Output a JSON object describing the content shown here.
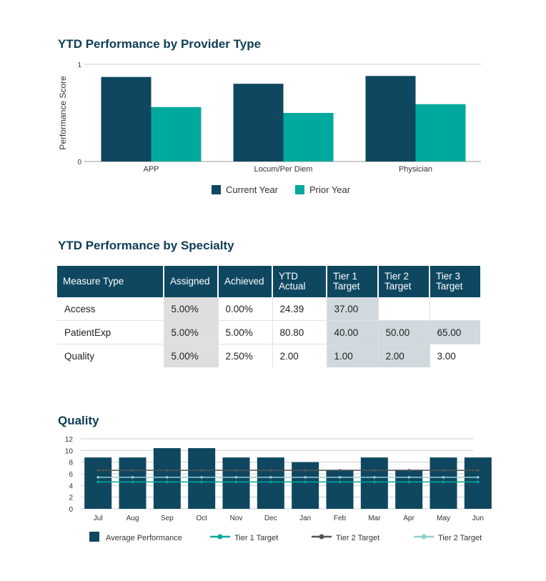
{
  "sections": {
    "provider_title": "YTD Performance by Provider Type",
    "specialty_title": "YTD Performance by Specialty",
    "quality_title": "Quality"
  },
  "chart_data": [
    {
      "type": "bar",
      "title": "YTD Performance by Provider Type",
      "ylabel": "Performance Score",
      "ylim": [
        0,
        1
      ],
      "yticks": [
        "0",
        "1"
      ],
      "categories": [
        "APP",
        "Locum/Per Diem",
        "Physician"
      ],
      "series": [
        {
          "name": "Current Year",
          "values": [
            0.87,
            0.8,
            0.88
          ],
          "color": "#0f4760"
        },
        {
          "name": "Prior Year",
          "values": [
            0.56,
            0.5,
            0.59
          ],
          "color": "#00a99d"
        }
      ],
      "legend": "bottom",
      "grid": false
    },
    {
      "type": "bar",
      "title": "Quality",
      "ylim": [
        0,
        12
      ],
      "yticks": [
        "0",
        "2",
        "4",
        "6",
        "8",
        "10",
        "12"
      ],
      "categories": [
        "Jul",
        "Aug",
        "Sep",
        "Oct",
        "Nov",
        "Dec",
        "Jan",
        "Feb",
        "Mar",
        "Apr",
        "May",
        "Jun"
      ],
      "series": [
        {
          "name": "Average Performance",
          "kind": "bar",
          "values": [
            8.8,
            8.8,
            10.4,
            10.4,
            8.8,
            8.8,
            8.0,
            6.7,
            8.8,
            6.7,
            8.8,
            8.8
          ],
          "color": "#0f4760"
        },
        {
          "name": "Tier 1 Target",
          "kind": "line",
          "values": [
            4.6,
            4.6,
            4.6,
            4.6,
            4.6,
            4.6,
            4.6,
            4.6,
            4.6,
            4.6,
            4.6,
            4.6
          ],
          "color": "#00a99d"
        },
        {
          "name": "Tier 2 Target",
          "kind": "line",
          "values": [
            6.6,
            6.6,
            6.6,
            6.6,
            6.6,
            6.6,
            6.6,
            6.6,
            6.6,
            6.6,
            6.6,
            6.6
          ],
          "color": "#555555"
        },
        {
          "name": "Tier 2 Target",
          "kind": "line",
          "values": [
            5.4,
            5.4,
            5.4,
            5.4,
            5.4,
            5.4,
            5.4,
            5.4,
            5.4,
            5.4,
            5.4,
            5.4
          ],
          "color": "#8fcfcf"
        }
      ],
      "legend": "bottom",
      "grid": true
    }
  ],
  "table": {
    "headers": [
      "Measure Type",
      "Assigned",
      "Achieved",
      "YTD Actual",
      "Tier 1 Target",
      "Tier 2 Target",
      "Tier 3 Target"
    ],
    "rows": [
      [
        "Access",
        "5.00%",
        "0.00%",
        "24.39",
        "37.00",
        "",
        ""
      ],
      [
        "PatientExp",
        "5.00%",
        "5.00%",
        "80.80",
        "40.00",
        "50.00",
        "65.00"
      ],
      [
        "Quality",
        "5.00%",
        "2.50%",
        "2.00",
        "1.00",
        "2.00",
        "3.00"
      ]
    ]
  }
}
